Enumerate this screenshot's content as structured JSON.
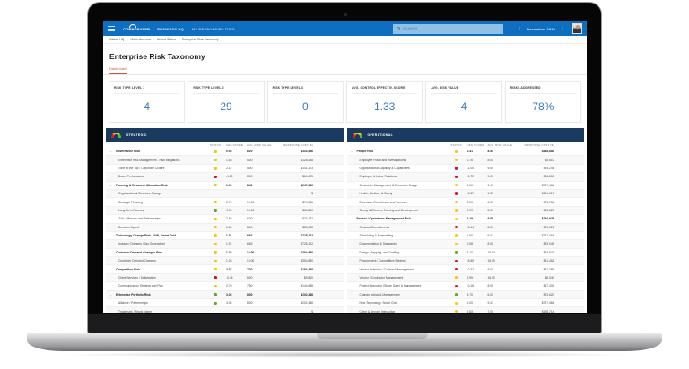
{
  "app": {
    "logo": "CORPORATER",
    "nav": [
      "BUSINESS HQ",
      "MY RESPONSIBILITIES"
    ],
    "search_placeholder": "SEARCH",
    "period": "December 2020",
    "prev_icon": "‹",
    "next_icon": "›"
  },
  "breadcrumb": [
    "Global HQ",
    "North America",
    "United States",
    "Enterprise Risk Taxonomy"
  ],
  "page": {
    "title": "Enterprise Risk Taxonomy",
    "tabs": [
      "Dashboard"
    ]
  },
  "kpis": [
    {
      "label": "RISK TYPE LEVEL 1",
      "value": "4"
    },
    {
      "label": "RISK TYPE LEVEL 2",
      "value": "29"
    },
    {
      "label": "RISK TYPE LEVEL 3",
      "value": "0"
    },
    {
      "label": "AVG. CONTROL EFFECTIV. SCORE",
      "value": "1.33"
    },
    {
      "label": "AVG. RISK VALUE",
      "value": "4"
    },
    {
      "label": "RISKS ADDRESSED",
      "value": "78%"
    }
  ],
  "columns": {
    "status": "STATUS",
    "ces": "CES SCORE",
    "risk": "AVG. RISK VALUE",
    "cost": "RESPONSE COST ($)"
  },
  "status_colors": {
    "yellow": "#f4c513",
    "red": "#d0141f",
    "green": "#5aa82e"
  },
  "panels": [
    {
      "title": "STRATEGIC",
      "rows": [
        {
          "group": true,
          "name": "Governance Risk",
          "status": "yellow",
          "ces": "0.55",
          "risk": "6.20",
          "cost": "$333,586"
        },
        {
          "group": false,
          "name": "Enterprise Risk Management - Risk Mitigations",
          "status": "yellow",
          "ces": "1.83",
          "risk": "5.00",
          "cost": "$128,238"
        },
        {
          "group": false,
          "name": "Tone at the Top / Corporate Culture",
          "status": "yellow",
          "ces": "2.12",
          "risk": "5.00",
          "cost": "$141,173"
        },
        {
          "group": false,
          "name": "Board Performance",
          "status": "red",
          "ces": "-1.80",
          "risk": "8.00",
          "cost": "$64,175"
        },
        {
          "group": true,
          "name": "Planning & Resource Allocation Risk",
          "status": "yellow",
          "ces": "1.96",
          "risk": "8.40",
          "cost": "$247,386"
        },
        {
          "group": false,
          "name": "Organizational Structure Change",
          "status": "none",
          "ces": "",
          "risk": "",
          "cost": "$"
        },
        {
          "group": false,
          "name": "Strategic Planning",
          "status": "yellow",
          "ces": "0.70",
          "risk": "10.00",
          "cost": "$74,356"
        },
        {
          "group": false,
          "name": "Long Term Planning",
          "status": "green",
          "ces": "4.90",
          "risk": "10.00",
          "cost": "$65,860"
        },
        {
          "group": false,
          "name": "JV's, Alliances and Partnerships",
          "status": "yellow",
          "ces": "2.88",
          "risk": "6.00",
          "cost": "$24,132"
        },
        {
          "group": false,
          "name": "Decision Speed",
          "status": "yellow",
          "ces": "0.65",
          "risk": "8.00",
          "cost": "$83,038"
        },
        {
          "group": true,
          "name": "Technology Change Risk - AMI, Smart Grid",
          "status": "yellow",
          "ces": "1.91",
          "risk": "6.63",
          "cost": "$728,122"
        },
        {
          "group": false,
          "name": "Industry Changes (Gas Generation)",
          "status": "yellow",
          "ces": "1.91",
          "risk": "6.63",
          "cost": "$728,122"
        },
        {
          "group": true,
          "name": "Customer Demand Changes Risk",
          "status": "yellow",
          "ces": "1.28",
          "risk": "10.00",
          "cost": "$304,830"
        },
        {
          "group": false,
          "name": "Customer Demand Changes",
          "status": "yellow",
          "ces": "1.28",
          "risk": "10.00",
          "cost": "$304,830"
        },
        {
          "group": true,
          "name": "Competition Risk",
          "status": "yellow",
          "ces": "2.07",
          "risk": "7.20",
          "cost": "$154,448"
        },
        {
          "group": false,
          "name": "Client Services / Satisfaction",
          "status": "red",
          "ces": "-0.46",
          "risk": "6.00",
          "cost": "$9,810"
        },
        {
          "group": false,
          "name": "Communication Strategy and Plan",
          "status": "yellow",
          "ces": "2.70",
          "risk": "7.50",
          "cost": "$144,638"
        },
        {
          "group": true,
          "name": "Enterprise Portfolio Risk",
          "status": "green",
          "ces": "3.06",
          "risk": "8.00",
          "cost": "$202,438"
        },
        {
          "group": false,
          "name": "Alliance / Partnerships",
          "status": "green",
          "ces": "3.06",
          "risk": "8.00",
          "cost": "$202,438"
        },
        {
          "group": false,
          "name": "Trademark / Brand Name",
          "status": "none",
          "ces": "",
          "risk": "",
          "cost": "$"
        }
      ]
    },
    {
      "title": "OPERATIONAL",
      "rows": [
        {
          "group": true,
          "name": "People Risk",
          "status": "yellow",
          "ces": "0.41",
          "risk": "8.55",
          "cost": "$338,880"
        },
        {
          "group": false,
          "name": "Employee Fraud and Investigations",
          "status": "yellow",
          "ces": "2.76",
          "risk": "8.00",
          "cost": "$5,510"
        },
        {
          "group": false,
          "name": "Organizational Capacity & Capabilities",
          "status": "red",
          "ces": "-1.05",
          "risk": "9.00",
          "cost": "$25,245"
        },
        {
          "group": false,
          "name": "Employee & Labor Relations",
          "status": "red",
          "ces": "-1.70",
          "risk": "9.00",
          "cost": "$58,801"
        },
        {
          "group": false,
          "name": "Contractor Management & Excessive Usage",
          "status": "yellow",
          "ces": "1.00",
          "risk": "9.47",
          "cost": "$727,464"
        },
        {
          "group": false,
          "name": "Health, Welfare, & Safety",
          "status": "red",
          "ces": "-0.57",
          "risk": "9.33",
          "cost": "$141,917"
        },
        {
          "group": false,
          "name": "Excessive Recruitment and Turnover",
          "status": "yellow",
          "ces": "3.00",
          "risk": "6.00",
          "cost": "$73,784"
        },
        {
          "group": false,
          "name": "Timely & Effective Training and Development",
          "status": "yellow",
          "ces": "2.99",
          "risk": "8.00",
          "cost": "$33,623"
        },
        {
          "group": true,
          "name": "Project / Operations Management Risk",
          "status": "yellow",
          "ces": "0.19",
          "risk": "9.88",
          "cost": "$294,945"
        },
        {
          "group": false,
          "name": "Contract Commitments",
          "status": "red",
          "ces": "-3.44",
          "risk": "8.00",
          "cost": "$25,021"
        },
        {
          "group": false,
          "name": "Scheduling & Forecasting",
          "status": "yellow",
          "ces": "1.00",
          "risk": "9.47",
          "cost": "$727,464"
        },
        {
          "group": false,
          "name": "Documentation & Standards",
          "status": "yellow",
          "ces": "2.08",
          "risk": "8.00",
          "cost": "$33,049"
        },
        {
          "group": false,
          "name": "Design, Mapping, and Drafting",
          "status": "green",
          "ces": "3.10",
          "risk": "15.00",
          "cost": "$33,541"
        },
        {
          "group": false,
          "name": "Procurement / Competitive Bidding",
          "status": "red",
          "ces": "-5.60",
          "risk": "15.00",
          "cost": "$31,452"
        },
        {
          "group": false,
          "name": "Vendor Selection / Contract Management",
          "status": "red",
          "ces": "-0.32",
          "risk": "8.00",
          "cost": "$32,289"
        },
        {
          "group": false,
          "name": "Vendor / Contractor Management",
          "status": "yellow",
          "ces": "2.95",
          "risk": "15.00",
          "cost": "$8,040"
        },
        {
          "group": false,
          "name": "Project Execution (Stage Gate) & Management",
          "status": "red",
          "ces": "-0.16",
          "risk": "8.00",
          "cost": "$67,433"
        },
        {
          "group": false,
          "name": "Change Notice & Management",
          "status": "green",
          "ces": "5.70",
          "risk": "6.00",
          "cost": "$23,620"
        },
        {
          "group": false,
          "name": "New Technology: Smart Grid",
          "status": "yellow",
          "ces": "1.00",
          "risk": "9.47",
          "cost": "$727,464"
        },
        {
          "group": false,
          "name": "Client & Service Interaction",
          "status": "yellow",
          "ces": "2.83",
          "risk": "7.00",
          "cost": "$128,714"
        }
      ]
    }
  ]
}
